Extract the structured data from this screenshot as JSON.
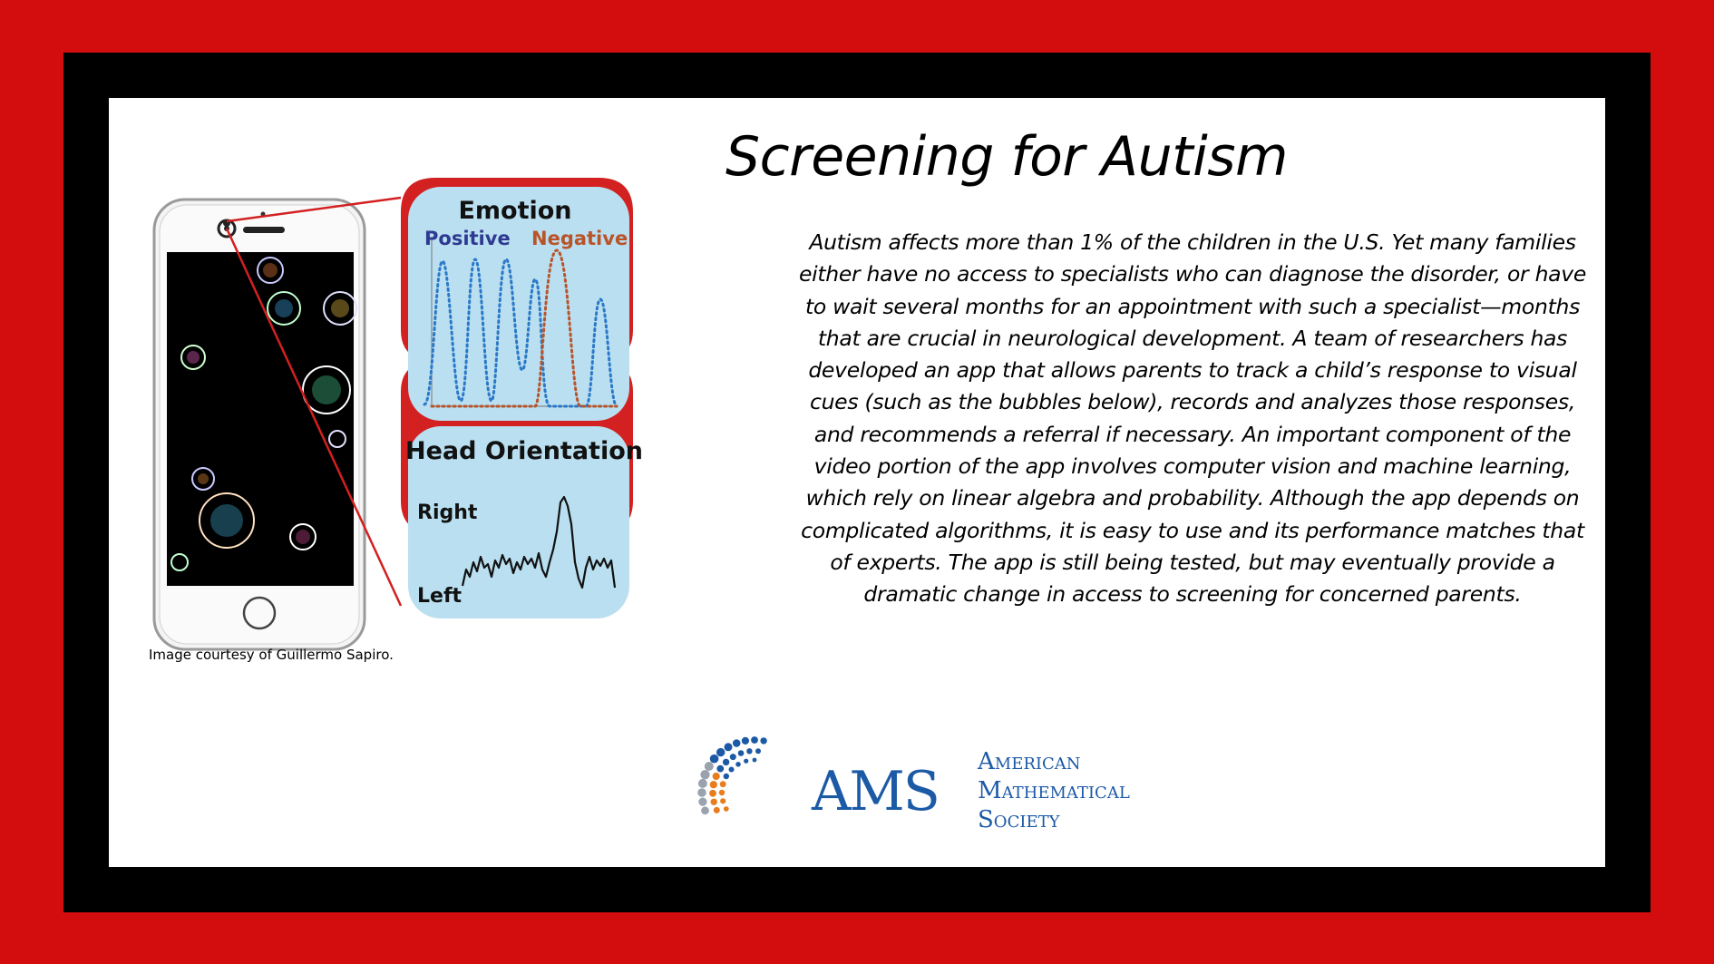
{
  "title": "Screening for Autism",
  "body": "Autism affects more than 1% of the children in the U.S. Yet many families either have no access to specialists who can diagnose the disorder, or have to wait several months for an appointment with such a specialist—months that are crucial in neurological development. A team of researchers has developed an app that allows parents to track a child’s response to visual cues (such as the bubbles below), records and analyzes those responses, and recommends a referral if necessary. An important component of the video portion of the app involves computer vision and machine learning, which rely on linear algebra and probability. Although the app depends on complicated algorithms, it is easy to use and its performance matches that of experts. The app is still being tested, but may eventually provide a dramatic change in access to screening for concerned parents.",
  "caption": "Image courtesy of Guillermo Sapiro.",
  "figure": {
    "emotion_title": "Emotion",
    "positive_label": "Positive",
    "negative_label": "Negative",
    "head_title": "Head Orientation",
    "right_label": "Right",
    "left_label": "Left"
  },
  "logo": {
    "letters": "AMS",
    "line1": "American",
    "line2": "Mathematical",
    "line3": "Society"
  },
  "colors": {
    "frame_red": "#d30d0d",
    "panel_blue": "#b9dff0",
    "positive": "#2e3a92",
    "negative": "#b9542a",
    "ams_blue": "#1c5aa6",
    "ams_orange": "#e87d1e"
  }
}
